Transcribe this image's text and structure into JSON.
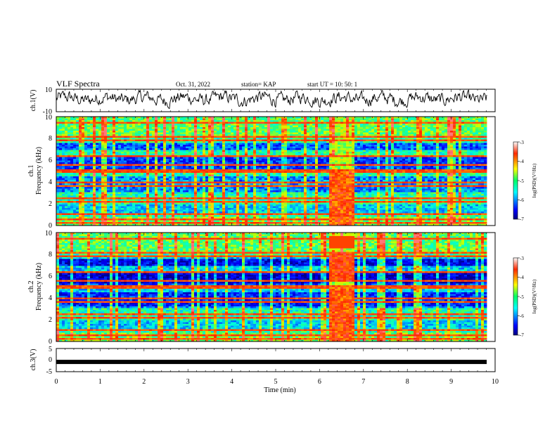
{
  "header": {
    "title": "VLF Spectra",
    "date": "Oct. 31, 2022",
    "station": "station= KAP",
    "start": "start  UT  =   10: 50: 1"
  },
  "chart_data": [
    {
      "type": "line",
      "name": "ch1-waveform",
      "ylabel": "ch.1(V)",
      "xlim": [
        0,
        10
      ],
      "ylim": [
        -10,
        10
      ],
      "yticks": [
        "10",
        "-10"
      ]
    },
    {
      "type": "heatmap",
      "name": "ch1-spectrogram",
      "ylabel": "ch.1\nFrequency (kHz)",
      "ylabel_lines": [
        "ch.1",
        "Frequency (kHz)"
      ],
      "xlim": [
        0,
        10
      ],
      "ylim": [
        0,
        10
      ],
      "yticks": [
        "0",
        "2",
        "4",
        "6",
        "8",
        "10"
      ],
      "colorbar": {
        "label": "log(PSD)(V²/Hz)",
        "range": [
          -7,
          -3
        ],
        "ticks": [
          "-3",
          "-4",
          "-5",
          "-6",
          "-7"
        ]
      },
      "burst_interval_min": [
        6.2,
        6.8
      ]
    },
    {
      "type": "heatmap",
      "name": "ch2-spectrogram",
      "ylabel": "ch.2\nFrequency (kHz)",
      "ylabel_lines": [
        "ch.2",
        "Frequency (kHz)"
      ],
      "xlim": [
        0,
        10
      ],
      "ylim": [
        0,
        10
      ],
      "yticks": [
        "0",
        "2",
        "4",
        "6",
        "8",
        "10"
      ],
      "colorbar": {
        "label": "log(PSD)(V²/Hz)",
        "range": [
          -7,
          -3
        ],
        "ticks": [
          "-3",
          "-4",
          "-5",
          "-6",
          "-7"
        ]
      },
      "burst_interval_min": [
        6.2,
        6.8
      ]
    },
    {
      "type": "line",
      "name": "ch3-waveform",
      "ylabel": "ch.3(V)",
      "xlim": [
        0,
        10
      ],
      "ylim": [
        -5,
        5
      ],
      "yticks": [
        "5",
        "0",
        "-5"
      ],
      "level_v": -0.8
    }
  ],
  "xaxis": {
    "label": "Time (min)",
    "ticks": [
      "0",
      "1",
      "2",
      "3",
      "4",
      "5",
      "6",
      "7",
      "8",
      "9",
      "10"
    ]
  },
  "colors": {
    "axis": "#000000",
    "trace": "#000000",
    "background": "#ffffff"
  }
}
